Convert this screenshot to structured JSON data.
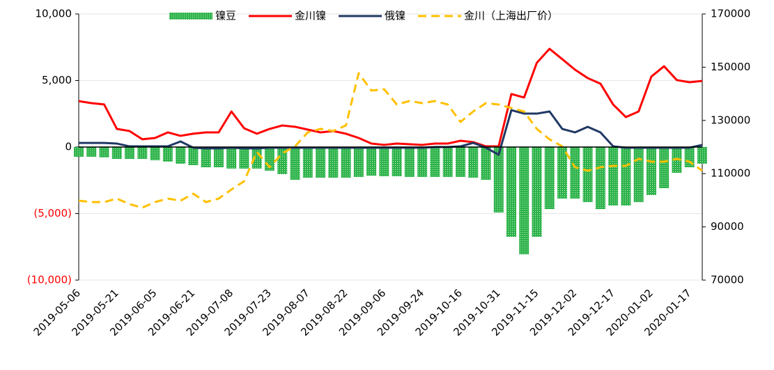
{
  "chart_data": {
    "type": "combo",
    "categories": [
      "2019-05-06",
      null,
      null,
      "2019-05-21",
      null,
      null,
      "2019-06-05",
      null,
      null,
      "2019-06-21",
      null,
      null,
      "2019-07-08",
      null,
      null,
      "2019-07-23",
      null,
      null,
      "2019-08-07",
      null,
      null,
      "2019-08-22",
      null,
      null,
      "2019-09-06",
      null,
      null,
      "2019-09-24",
      null,
      null,
      "2019-10-16",
      null,
      null,
      "2019-10-31",
      null,
      null,
      "2019-11-15",
      null,
      null,
      "2019-12-02",
      null,
      null,
      "2019-12-17",
      null,
      null,
      "2020-01-02",
      null,
      null,
      "2020-01-17",
      null
    ],
    "ylim": [
      -10000,
      10000
    ],
    "yticks": [
      {
        "value": 10000,
        "label": "10,000"
      },
      {
        "value": 5000,
        "label": "5,000"
      },
      0,
      {
        "value": -5000,
        "label": "(5,000)"
      },
      {
        "value": -10000,
        "label": "(10,000)"
      }
    ],
    "negative_label_color": "#ff0000",
    "y2lim": [
      70000,
      170000
    ],
    "y2ticks": [
      170000,
      150000,
      130000,
      110000,
      90000,
      70000
    ],
    "grid": true,
    "legend": "top",
    "series": [
      {
        "name": "镍豆",
        "type": "bar",
        "color": "#2db34a",
        "values": [
          -730,
          -730,
          -780,
          -890,
          -890,
          -890,
          -990,
          -1100,
          -1260,
          -1360,
          -1520,
          -1520,
          -1620,
          -1620,
          -1620,
          -1780,
          -2040,
          -2460,
          -2300,
          -2300,
          -2300,
          -2300,
          -2250,
          -2150,
          -2200,
          -2200,
          -2250,
          -2250,
          -2250,
          -2250,
          -2250,
          -2300,
          -2460,
          -4920,
          -6750,
          -8060,
          -6750,
          -4660,
          -3870,
          -3870,
          -4140,
          -4660,
          -4400,
          -4400,
          -4140,
          -3610,
          -3090,
          -1940,
          -1520,
          -1260
        ]
      },
      {
        "name": "金川镍",
        "type": "line",
        "color": "#ff0000",
        "values": [
          3450,
          3300,
          3200,
          1360,
          1200,
          580,
          680,
          1100,
          840,
          1000,
          1100,
          1100,
          2670,
          1410,
          1000,
          1360,
          1620,
          1520,
          1310,
          1100,
          1200,
          1000,
          680,
          260,
          160,
          260,
          210,
          160,
          260,
          260,
          470,
          370,
          50,
          50,
          3980,
          3720,
          6330,
          7380,
          6600,
          5810,
          5180,
          4760,
          3190,
          2250,
          2670,
          5290,
          6070,
          5030,
          4870,
          4970
        ]
      },
      {
        "name": "俄镍",
        "type": "line",
        "color": "#203864",
        "values": [
          310,
          310,
          310,
          260,
          50,
          50,
          50,
          50,
          420,
          -50,
          -100,
          -100,
          -50,
          -100,
          -100,
          -50,
          -50,
          -50,
          -50,
          -50,
          -50,
          -50,
          -50,
          -50,
          -50,
          -50,
          -50,
          -50,
          0,
          0,
          50,
          310,
          -50,
          -580,
          2770,
          2510,
          2510,
          2670,
          1360,
          1100,
          1520,
          1100,
          50,
          -50,
          -50,
          -50,
          -50,
          -50,
          -50,
          160
        ]
      },
      {
        "name": "金川（上海出厂价）",
        "type": "line",
        "dashed": true,
        "axis": "y2",
        "color": "#ffc000",
        "values": [
          99840,
          99320,
          99320,
          100630,
          98530,
          97220,
          99320,
          100630,
          99840,
          102460,
          99320,
          100630,
          104030,
          107170,
          118170,
          112410,
          117640,
          120260,
          125500,
          126810,
          126020,
          128120,
          147750,
          141200,
          141730,
          135970,
          137280,
          136490,
          137280,
          135970,
          129420,
          133350,
          136490,
          135970,
          134660,
          133350,
          126810,
          122880,
          120260,
          112410,
          111100,
          112410,
          112930,
          112930,
          115550,
          114510,
          114510,
          115550,
          114510,
          111100
        ]
      }
    ]
  }
}
